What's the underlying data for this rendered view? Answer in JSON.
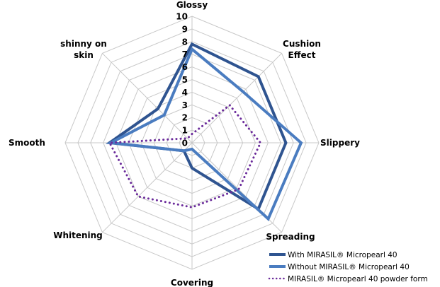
{
  "chart_data": {
    "type": "radar",
    "title": "",
    "categories": [
      "Glossy",
      "Cushion Effect",
      "Slippery",
      "Spreading",
      "Covering",
      "Whitening",
      "Smooth",
      "shinny on skin"
    ],
    "category_lines": [
      [
        "Glossy"
      ],
      [
        "Cushion",
        "Effect"
      ],
      [
        "Slippery"
      ],
      [
        "Spreading"
      ],
      [
        "Covering"
      ],
      [
        "Whitening"
      ],
      [
        "Smooth"
      ],
      [
        "shinny on",
        "skin"
      ]
    ],
    "rlim": [
      0,
      10
    ],
    "ticks": [
      "0",
      "1",
      "2",
      "3",
      "4",
      "5",
      "6",
      "7",
      "8",
      "9",
      "10"
    ],
    "grid": true,
    "legend_position": "bottom-right",
    "series": [
      {
        "name": "With MIRASIL® Micropearl 40",
        "color": "#2f5490",
        "style": "solid",
        "values": [
          7.8,
          7.4,
          7.4,
          7.4,
          2.0,
          0.9,
          6.5,
          3.8
        ]
      },
      {
        "name": "Without MIRASIL® Micropearl 40",
        "color": "#4a7cc0",
        "style": "solid",
        "values": [
          7.4,
          5.7,
          8.6,
          8.5,
          0.5,
          0.9,
          6.4,
          3.1
        ]
      },
      {
        "name": "MIRASIL® Micropearl 40 powder form",
        "color": "#6a2a9a",
        "style": "dotted",
        "values": [
          0.7,
          4.2,
          5.4,
          5.2,
          5.1,
          6.0,
          6.5,
          0.5
        ]
      }
    ]
  }
}
